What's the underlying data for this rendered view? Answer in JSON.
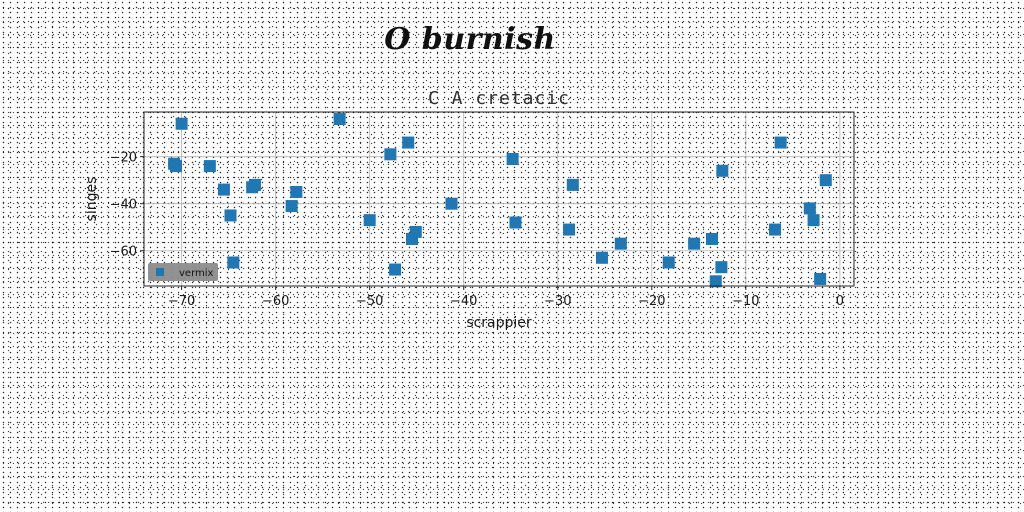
{
  "suptitle": "O burnish",
  "chart_data": {
    "type": "scatter",
    "title": "C A cretacic",
    "xlabel": "scrappier",
    "ylabel": "singes",
    "xlim": [
      -74,
      1.5
    ],
    "ylim": [
      -75,
      -1
    ],
    "xticks": [
      -70,
      -60,
      -50,
      -40,
      -30,
      -20,
      -10,
      0
    ],
    "yticks": [
      -20,
      -40,
      -60
    ],
    "grid": true,
    "legend_position": "lower-left",
    "series": [
      {
        "name": "vermix",
        "color": "#1f77b4",
        "marker": "square",
        "points": [
          [
            -70.0,
            -6
          ],
          [
            -70.8,
            -23
          ],
          [
            -70.6,
            -24
          ],
          [
            -67.0,
            -24
          ],
          [
            -65.5,
            -34
          ],
          [
            -64.8,
            -45
          ],
          [
            -64.5,
            -65
          ],
          [
            -62.5,
            -33
          ],
          [
            -62.2,
            -32
          ],
          [
            -58.3,
            -41
          ],
          [
            -57.8,
            -35
          ],
          [
            -53.2,
            -4
          ],
          [
            -50.0,
            -47
          ],
          [
            -47.8,
            -19
          ],
          [
            -47.3,
            -68
          ],
          [
            -45.9,
            -14
          ],
          [
            -45.5,
            -55
          ],
          [
            -45.1,
            -52
          ],
          [
            -41.3,
            -40
          ],
          [
            -34.8,
            -21
          ],
          [
            -34.5,
            -48
          ],
          [
            -28.8,
            -51
          ],
          [
            -28.4,
            -32
          ],
          [
            -25.3,
            -63
          ],
          [
            -23.3,
            -57
          ],
          [
            -18.2,
            -65
          ],
          [
            -15.5,
            -57
          ],
          [
            -13.6,
            -55
          ],
          [
            -13.2,
            -73
          ],
          [
            -12.6,
            -67
          ],
          [
            -12.5,
            -26
          ],
          [
            -6.9,
            -51
          ],
          [
            -6.3,
            -14
          ],
          [
            -3.2,
            -42
          ],
          [
            -2.8,
            -47
          ],
          [
            -2.1,
            -72
          ],
          [
            -1.5,
            -30
          ]
        ]
      }
    ]
  }
}
